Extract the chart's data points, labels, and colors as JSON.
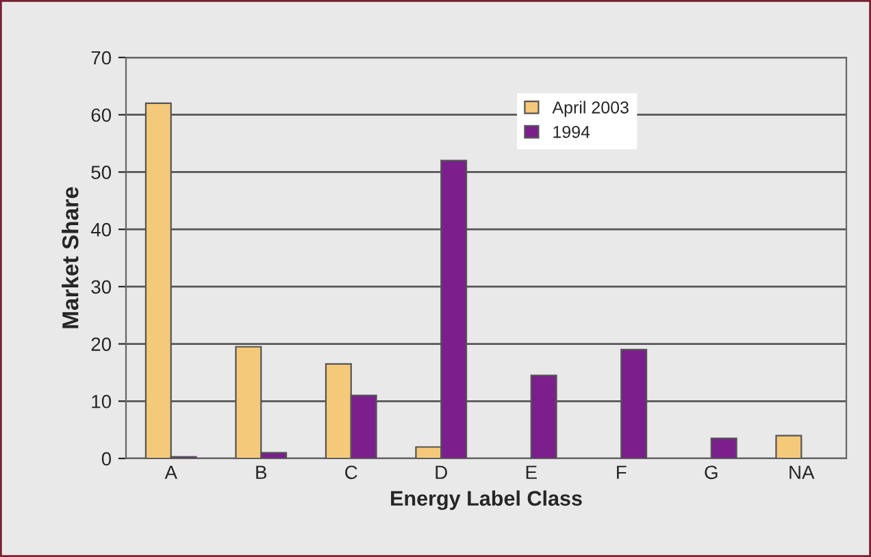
{
  "chart_data": {
    "type": "bar",
    "xlabel": "Energy Label Class",
    "ylabel": "Market Share",
    "categories": [
      "A",
      "B",
      "C",
      "D",
      "E",
      "F",
      "G",
      "NA"
    ],
    "series": [
      {
        "name": "April 2003",
        "color": "#f5c97a",
        "values": [
          62,
          19.5,
          16.5,
          2,
          null,
          null,
          null,
          4
        ]
      },
      {
        "name": "1994",
        "color": "#7b1f8c",
        "values": [
          0.3,
          1,
          11,
          52,
          14.5,
          19,
          3.5,
          null
        ]
      }
    ],
    "ylim": [
      0,
      70
    ],
    "yticks": [
      0,
      10,
      20,
      30,
      40,
      50,
      60,
      70
    ],
    "grid": "y",
    "legend": "top right"
  }
}
